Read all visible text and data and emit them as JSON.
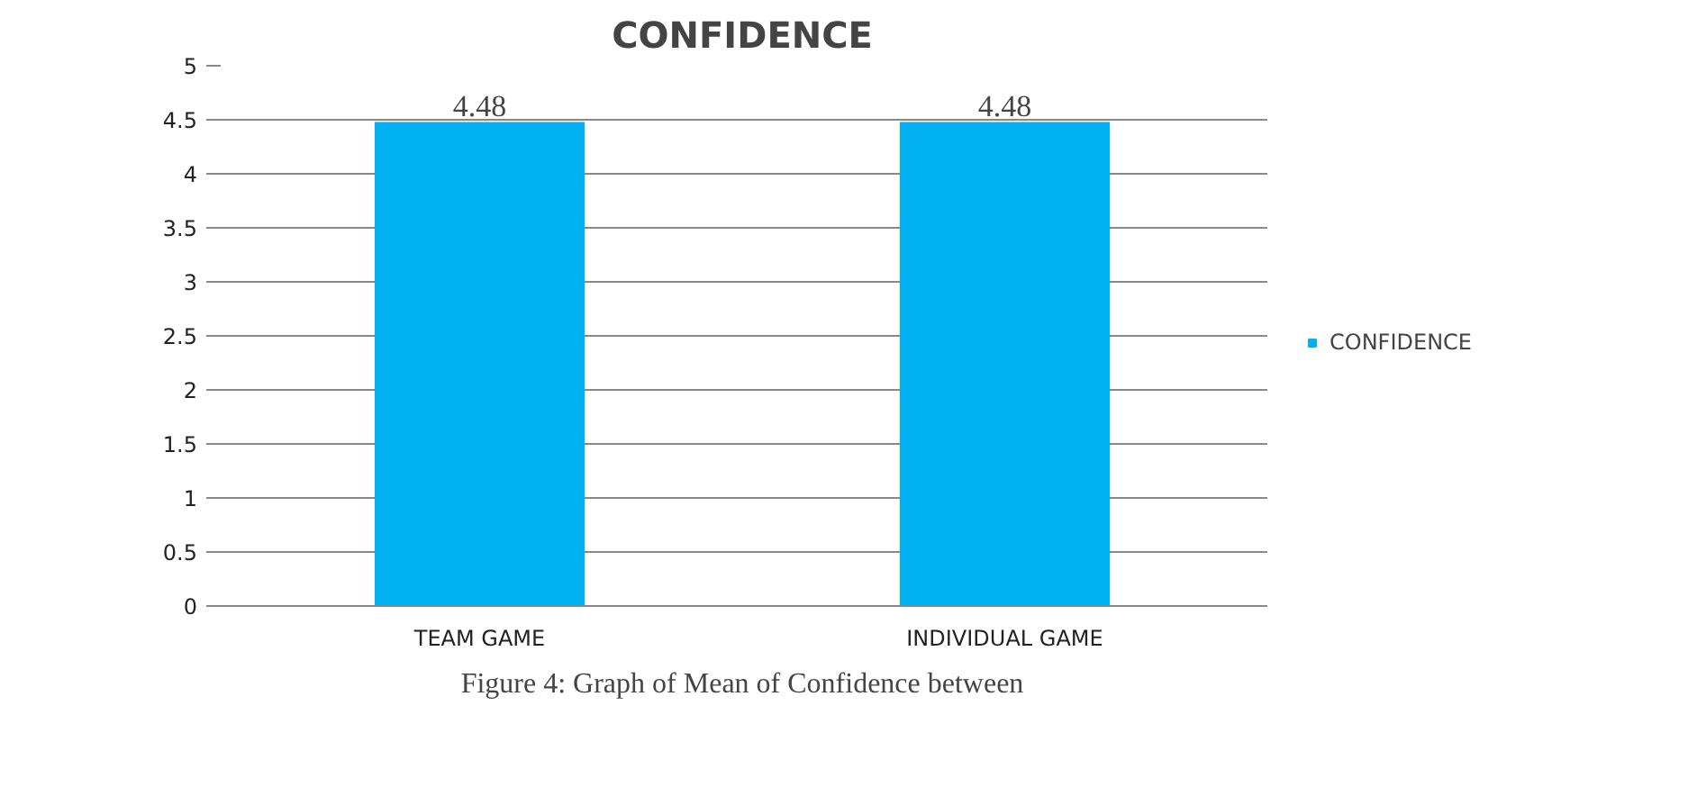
{
  "chart_data": {
    "type": "bar",
    "title": "CONFIDENCE",
    "categories": [
      "TEAM GAME",
      "INDIVIDUAL GAME"
    ],
    "series": [
      {
        "name": "CONFIDENCE",
        "color": "#00b0f0",
        "values": [
          4.48,
          4.48
        ]
      }
    ],
    "ylim": [
      0,
      5
    ],
    "yticks": [
      0,
      0.5,
      1,
      1.5,
      2,
      2.5,
      3,
      3.5,
      4,
      4.5,
      5
    ],
    "grid": "y",
    "legend": "right",
    "data_labels": true,
    "annotations": [
      "Figure 4: Graph of Mean of Confidence between"
    ]
  }
}
